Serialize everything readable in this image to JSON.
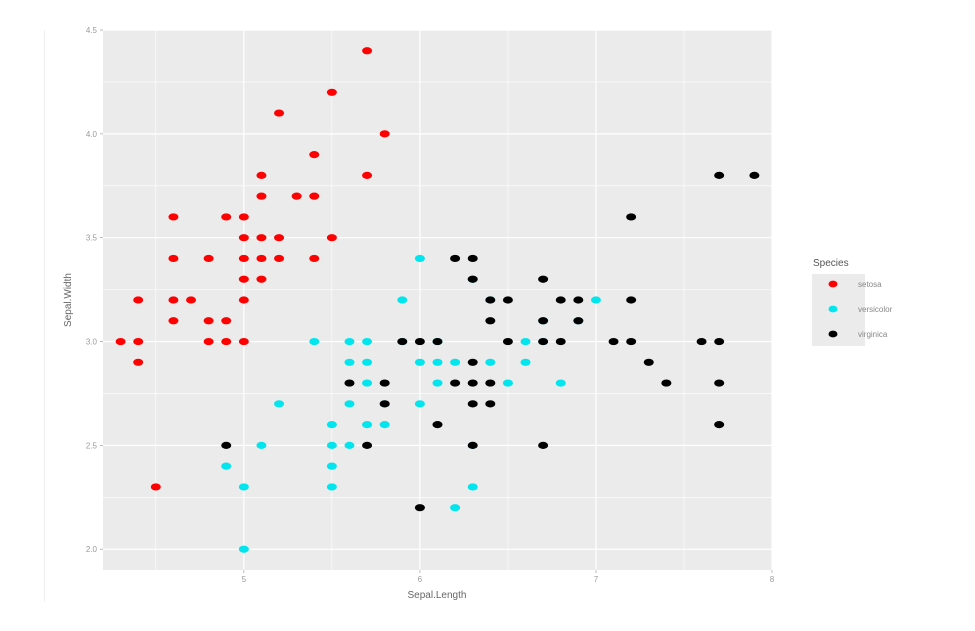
{
  "colors": {
    "panel_bg": "#ebebeb",
    "grid": "#ffffff",
    "setosa": "#ff0000",
    "versicolor": "#00e5ee",
    "virginica": "#000000"
  },
  "chart_data": {
    "type": "scatter",
    "title": "",
    "xlabel": "Sepal.Length",
    "ylabel": "Sepal.Width",
    "xlim": [
      4.2,
      8.0
    ],
    "ylim": [
      1.9,
      4.5
    ],
    "x_ticks": [
      5,
      6,
      7,
      8
    ],
    "y_ticks": [
      2.0,
      2.5,
      3.0,
      3.5,
      4.0,
      4.5
    ],
    "x_tick_labels": [
      "5",
      "6",
      "7",
      "8"
    ],
    "y_tick_labels": [
      "2.0",
      "2.5",
      "3.0",
      "3.5",
      "4.0",
      "4.5"
    ],
    "grid": true,
    "legend": {
      "title": "Species",
      "placement": "right",
      "entries": [
        "setosa",
        "versicolor",
        "virginica"
      ]
    },
    "series": [
      {
        "name": "setosa",
        "color": "#ff0000",
        "points": [
          [
            4.3,
            3.0
          ],
          [
            4.4,
            3.0
          ],
          [
            4.4,
            2.9
          ],
          [
            4.4,
            3.2
          ],
          [
            4.5,
            2.3
          ],
          [
            4.6,
            3.6
          ],
          [
            4.6,
            3.4
          ],
          [
            4.6,
            3.2
          ],
          [
            4.6,
            3.1
          ],
          [
            4.7,
            3.2
          ],
          [
            4.8,
            3.4
          ],
          [
            4.8,
            3.1
          ],
          [
            4.8,
            3.0
          ],
          [
            4.9,
            3.6
          ],
          [
            4.9,
            3.1
          ],
          [
            4.9,
            3.0
          ],
          [
            5.0,
            3.6
          ],
          [
            5.0,
            3.5
          ],
          [
            5.0,
            3.4
          ],
          [
            5.0,
            3.3
          ],
          [
            5.0,
            3.2
          ],
          [
            5.0,
            3.0
          ],
          [
            5.1,
            3.8
          ],
          [
            5.1,
            3.7
          ],
          [
            5.1,
            3.5
          ],
          [
            5.1,
            3.4
          ],
          [
            5.1,
            3.3
          ],
          [
            5.2,
            4.1
          ],
          [
            5.2,
            3.5
          ],
          [
            5.2,
            3.4
          ],
          [
            5.3,
            3.7
          ],
          [
            5.4,
            3.9
          ],
          [
            5.4,
            3.7
          ],
          [
            5.4,
            3.4
          ],
          [
            5.5,
            4.2
          ],
          [
            5.5,
            3.5
          ],
          [
            5.7,
            4.4
          ],
          [
            5.7,
            3.8
          ],
          [
            5.8,
            4.0
          ]
        ]
      },
      {
        "name": "versicolor",
        "color": "#00e5ee",
        "points": [
          [
            4.9,
            2.4
          ],
          [
            5.0,
            2.3
          ],
          [
            5.0,
            2.0
          ],
          [
            5.1,
            2.5
          ],
          [
            5.2,
            2.7
          ],
          [
            5.4,
            3.0
          ],
          [
            5.5,
            2.6
          ],
          [
            5.5,
            2.5
          ],
          [
            5.5,
            2.4
          ],
          [
            5.5,
            2.3
          ],
          [
            5.6,
            3.0
          ],
          [
            5.6,
            2.9
          ],
          [
            5.6,
            2.7
          ],
          [
            5.6,
            2.5
          ],
          [
            5.7,
            3.0
          ],
          [
            5.7,
            2.9
          ],
          [
            5.7,
            2.8
          ],
          [
            5.7,
            2.6
          ],
          [
            5.8,
            2.7
          ],
          [
            5.8,
            2.6
          ],
          [
            5.9,
            3.2
          ],
          [
            5.9,
            3.0
          ],
          [
            6.0,
            3.4
          ],
          [
            6.0,
            2.9
          ],
          [
            6.0,
            2.7
          ],
          [
            6.1,
            3.0
          ],
          [
            6.1,
            2.9
          ],
          [
            6.1,
            2.8
          ],
          [
            6.2,
            2.9
          ],
          [
            6.2,
            2.2
          ],
          [
            6.3,
            3.3
          ],
          [
            6.3,
            2.5
          ],
          [
            6.3,
            2.3
          ],
          [
            6.4,
            3.2
          ],
          [
            6.4,
            2.9
          ],
          [
            6.5,
            2.8
          ],
          [
            6.6,
            3.0
          ],
          [
            6.6,
            2.9
          ],
          [
            6.7,
            3.1
          ],
          [
            6.7,
            3.0
          ],
          [
            6.8,
            2.8
          ],
          [
            6.9,
            3.1
          ],
          [
            7.0,
            3.2
          ]
        ]
      },
      {
        "name": "virginica",
        "color": "#000000",
        "points": [
          [
            4.9,
            2.5
          ],
          [
            5.6,
            2.8
          ],
          [
            5.7,
            2.5
          ],
          [
            5.8,
            2.8
          ],
          [
            5.8,
            2.7
          ],
          [
            5.9,
            3.0
          ],
          [
            6.0,
            3.0
          ],
          [
            6.0,
            2.2
          ],
          [
            6.1,
            3.0
          ],
          [
            6.1,
            2.6
          ],
          [
            6.2,
            3.4
          ],
          [
            6.2,
            2.8
          ],
          [
            6.3,
            3.4
          ],
          [
            6.3,
            3.3
          ],
          [
            6.3,
            2.9
          ],
          [
            6.3,
            2.8
          ],
          [
            6.3,
            2.7
          ],
          [
            6.3,
            2.5
          ],
          [
            6.4,
            3.2
          ],
          [
            6.4,
            3.1
          ],
          [
            6.4,
            2.8
          ],
          [
            6.4,
            2.7
          ],
          [
            6.5,
            3.2
          ],
          [
            6.5,
            3.0
          ],
          [
            6.7,
            3.3
          ],
          [
            6.7,
            3.1
          ],
          [
            6.7,
            3.0
          ],
          [
            6.7,
            2.5
          ],
          [
            6.8,
            3.2
          ],
          [
            6.8,
            3.0
          ],
          [
            6.9,
            3.2
          ],
          [
            6.9,
            3.1
          ],
          [
            7.1,
            3.0
          ],
          [
            7.2,
            3.6
          ],
          [
            7.2,
            3.2
          ],
          [
            7.2,
            3.0
          ],
          [
            7.3,
            2.9
          ],
          [
            7.4,
            2.8
          ],
          [
            7.6,
            3.0
          ],
          [
            7.7,
            3.8
          ],
          [
            7.7,
            3.0
          ],
          [
            7.7,
            2.8
          ],
          [
            7.7,
            2.6
          ],
          [
            7.9,
            3.8
          ]
        ]
      }
    ]
  }
}
